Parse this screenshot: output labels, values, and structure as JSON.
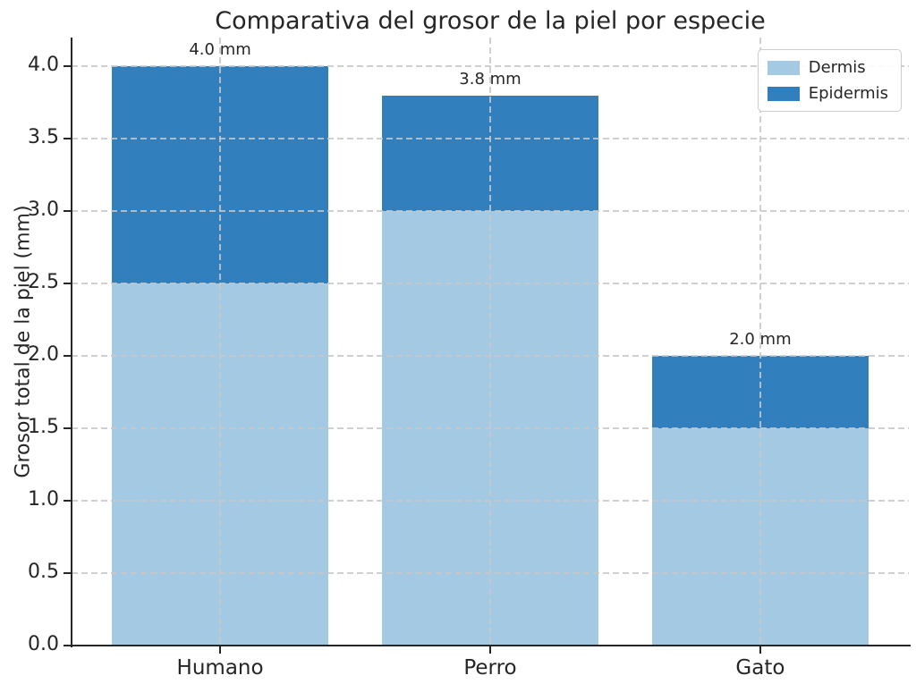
{
  "chart_data": {
    "type": "bar",
    "stacked": true,
    "title": "Comparativa del grosor de la piel por especie",
    "xlabel": "",
    "ylabel": "Grosor total de la piel (mm)",
    "categories": [
      "Humano",
      "Perro",
      "Gato"
    ],
    "series": [
      {
        "name": "Dermis",
        "color": "#a3cae2",
        "values": [
          2.5,
          3.0,
          1.5
        ]
      },
      {
        "name": "Epidermis",
        "color": "#317fbc",
        "values": [
          1.5,
          0.8,
          0.5
        ]
      }
    ],
    "totals": [
      4.0,
      3.8,
      2.0
    ],
    "bar_labels": [
      "4.0 mm",
      "3.8 mm",
      "2.0 mm"
    ],
    "ylim": [
      0,
      4.2
    ],
    "yticks": [
      "0.0",
      "0.5",
      "1.0",
      "1.5",
      "2.0",
      "2.5",
      "3.0",
      "3.5",
      "4.0"
    ],
    "grid": {
      "style": "dashed",
      "color": "#c7c7c7",
      "over_bars": true
    },
    "legend_position": "upper right"
  }
}
